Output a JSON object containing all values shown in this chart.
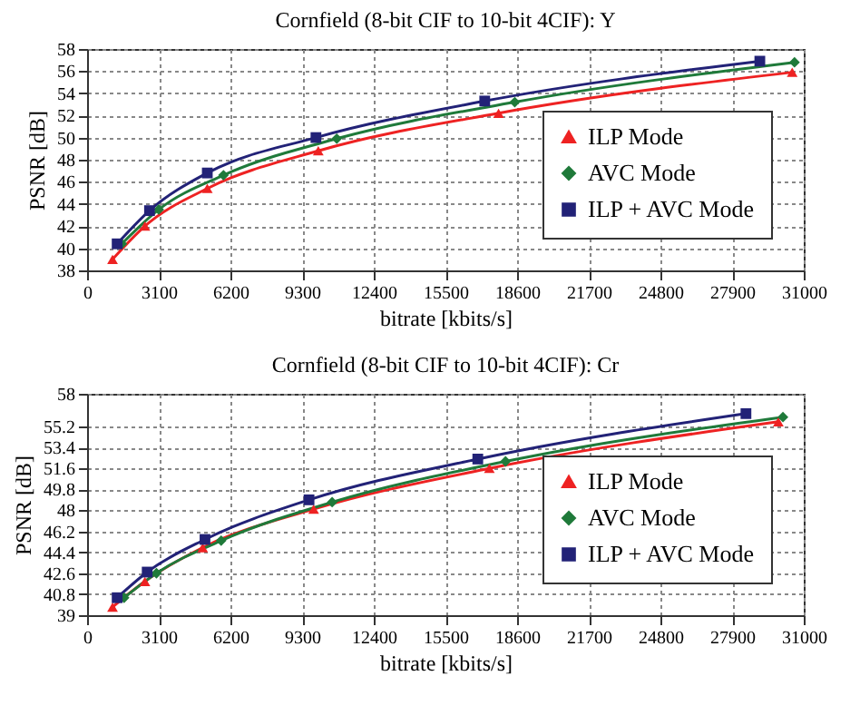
{
  "chart_data": [
    {
      "type": "line",
      "title": "Cornfield (8-bit CIF to 10-bit 4CIF): Y",
      "xlabel": "bitrate [kbits/s]",
      "ylabel": "PSNR [dB]",
      "xlim": [
        0,
        31000
      ],
      "xticks": [
        0,
        3100,
        6200,
        9300,
        12400,
        15500,
        18600,
        21700,
        24800,
        27900,
        31000
      ],
      "ylim": [
        38,
        58
      ],
      "yticks": [
        38,
        40,
        42,
        44,
        46,
        48,
        50,
        52,
        54,
        56,
        58
      ],
      "grid": true,
      "legend": "bottom right",
      "line_style": "solid",
      "series": [
        {
          "name": "ILP Mode",
          "color": "#ee2222",
          "marker": "triangle",
          "x": [
            1100,
            2500,
            5200,
            10000,
            17800,
            30500
          ],
          "values": [
            39.0,
            42.0,
            45.4,
            48.8,
            52.2,
            55.9
          ]
        },
        {
          "name": "AVC Mode",
          "color": "#1f7a3a",
          "marker": "diamond",
          "x": [
            1500,
            3100,
            5900,
            10800,
            18500,
            30600
          ],
          "values": [
            40.4,
            43.5,
            46.6,
            49.9,
            53.2,
            56.8
          ]
        },
        {
          "name": "ILP + AVC Mode",
          "color": "#222277",
          "marker": "square",
          "x": [
            1300,
            2700,
            5200,
            9900,
            17200,
            29100
          ],
          "values": [
            40.4,
            43.4,
            46.8,
            50.0,
            53.3,
            56.9
          ]
        }
      ]
    },
    {
      "type": "line",
      "title": "Cornfield (8-bit CIF to 10-bit 4CIF): Cr",
      "xlabel": "bitrate [kbits/s]",
      "ylabel": "PSNR [dB]",
      "xlim": [
        0,
        31000
      ],
      "xticks": [
        0,
        3100,
        6200,
        9300,
        12400,
        15500,
        18600,
        21700,
        24800,
        27900,
        31000
      ],
      "ylim": [
        39,
        58
      ],
      "yticks": [
        39,
        40.8,
        42.6,
        44.4,
        46.2,
        48,
        49.8,
        51.6,
        53.4,
        55.2,
        58
      ],
      "grid": true,
      "legend": "bottom right",
      "line_style": "solid",
      "series": [
        {
          "name": "ILP Mode",
          "color": "#ee2222",
          "marker": "triangle",
          "x": [
            1100,
            2500,
            5000,
            9800,
            17400,
            29900
          ],
          "values": [
            39.7,
            41.9,
            44.8,
            48.1,
            51.6,
            55.6
          ]
        },
        {
          "name": "AVC Mode",
          "color": "#1f7a3a",
          "marker": "diamond",
          "x": [
            1600,
            3000,
            5800,
            10600,
            18100,
            30100
          ],
          "values": [
            40.5,
            42.6,
            45.4,
            48.7,
            52.2,
            56.0
          ]
        },
        {
          "name": "ILP + AVC Mode",
          "color": "#222277",
          "marker": "square",
          "x": [
            1300,
            2600,
            5100,
            9600,
            16900,
            28500
          ],
          "values": [
            40.5,
            42.7,
            45.5,
            48.9,
            52.4,
            56.3
          ]
        }
      ]
    }
  ]
}
